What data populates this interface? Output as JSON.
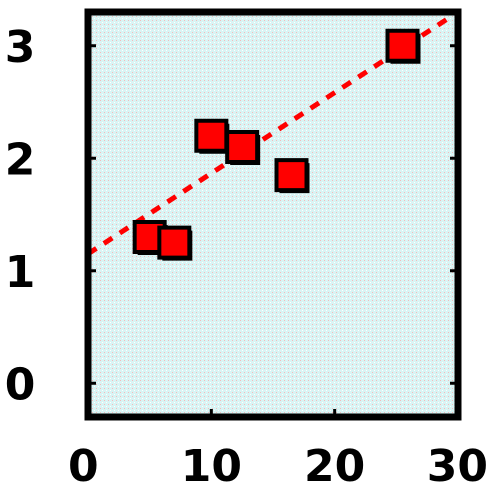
{
  "chart_data": {
    "type": "scatter",
    "title": "",
    "xlabel": "",
    "ylabel": "",
    "xlim": [
      0,
      30
    ],
    "ylim": [
      -0.3,
      3.3
    ],
    "x_ticks": [
      0,
      10,
      20,
      30
    ],
    "y_ticks": [
      0,
      1,
      2,
      3
    ],
    "x_tick_labels": [
      "0",
      "10",
      "20",
      "30"
    ],
    "y_tick_labels": [
      "0",
      "1",
      "2",
      "3"
    ],
    "grid": false,
    "series": [
      {
        "points": [
          {
            "x": 5,
            "y": 1.3
          },
          {
            "x": 7,
            "y": 1.25
          },
          {
            "x": 10,
            "y": 2.2
          },
          {
            "x": 12.5,
            "y": 2.1
          },
          {
            "x": 16.5,
            "y": 1.85
          },
          {
            "x": 25.5,
            "y": 3.0
          }
        ],
        "marker": "square",
        "color": "#ff0000"
      }
    ],
    "trendline": {
      "style": "dashed",
      "color": "#ff0000",
      "points": [
        {
          "x": 0,
          "y": 1.15
        },
        {
          "x": 30,
          "y": 3.3
        }
      ]
    },
    "colors": {
      "plot_background": "#d9f4f4",
      "axes": "#000000",
      "marker_fill": "#ff0000",
      "marker_edge": "#000000"
    }
  }
}
